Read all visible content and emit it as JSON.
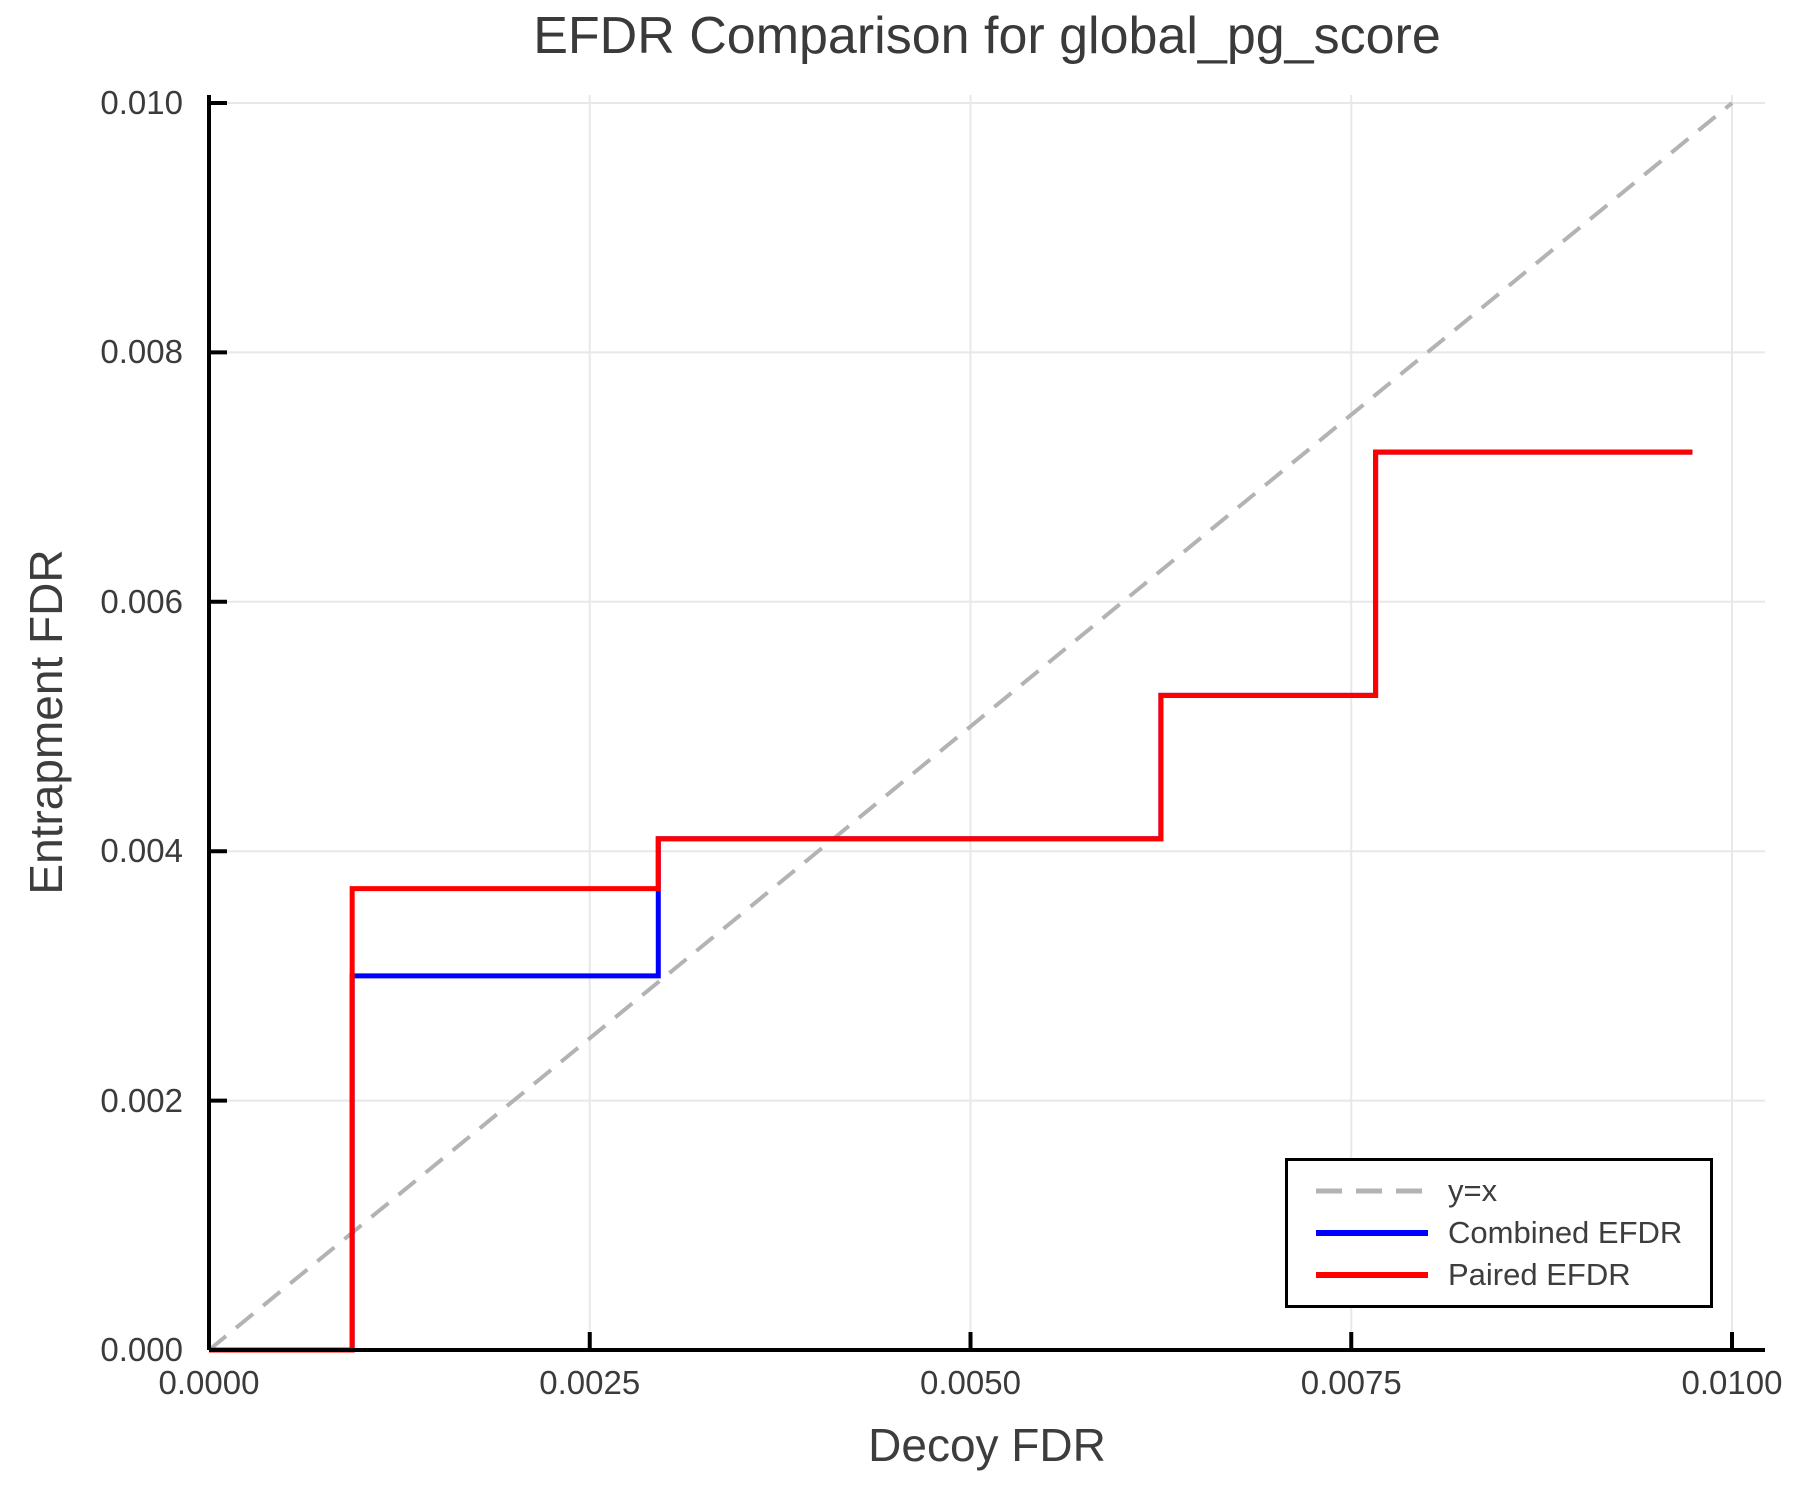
{
  "title": "EFDR Comparison for global_pg_score",
  "chart_data": {
    "type": "line",
    "subtype": "step-comparison",
    "title": "EFDR Comparison for global_pg_score",
    "xlabel": "Decoy FDR",
    "ylabel": "Entrapment FDR",
    "xlim": [
      0.0,
      0.01
    ],
    "ylim": [
      0.0,
      0.01
    ],
    "grid": true,
    "grid_color": "#e8e8e8",
    "axis_color": "#000000",
    "text_color": "#3d3d3d",
    "x_ticks": {
      "values": [
        0.0,
        0.0025,
        0.005,
        0.0075,
        0.01
      ],
      "labels": [
        "0.0000",
        "0.0025",
        "0.0050",
        "0.0075",
        "0.0100"
      ]
    },
    "y_ticks": {
      "values": [
        0.0,
        0.002,
        0.004,
        0.006,
        0.008,
        0.01
      ],
      "labels": [
        "0.000",
        "0.002",
        "0.004",
        "0.006",
        "0.008",
        "0.010"
      ]
    },
    "series": [
      {
        "name": "y=x",
        "role": "reference-line",
        "color": "#b3b3b3",
        "dashed": true,
        "stroke_width": 4,
        "points": [
          [
            0.0,
            0.0
          ],
          [
            0.01,
            0.01
          ]
        ]
      },
      {
        "name": "Combined EFDR",
        "role": "data-step-line",
        "color": "#0000ff",
        "dashed": false,
        "stroke_width": 5,
        "points": [
          [
            0.0,
            0.0
          ],
          [
            0.00094,
            0.0
          ],
          [
            0.00094,
            0.003
          ],
          [
            0.00295,
            0.003
          ],
          [
            0.00295,
            0.0041
          ],
          [
            0.00625,
            0.0041
          ],
          [
            0.00625,
            0.00525
          ],
          [
            0.00766,
            0.00525
          ],
          [
            0.00766,
            0.0072
          ],
          [
            0.00974,
            0.0072
          ]
        ]
      },
      {
        "name": "Paired EFDR",
        "role": "data-step-line",
        "color": "#ff0000",
        "dashed": false,
        "stroke_width": 5,
        "points": [
          [
            0.0,
            0.0
          ],
          [
            0.00094,
            0.0
          ],
          [
            0.00094,
            0.0037
          ],
          [
            0.00295,
            0.0037
          ],
          [
            0.00295,
            0.0041
          ],
          [
            0.00625,
            0.0041
          ],
          [
            0.00625,
            0.00525
          ],
          [
            0.00766,
            0.00525
          ],
          [
            0.00766,
            0.0072
          ],
          [
            0.00974,
            0.0072
          ]
        ]
      }
    ],
    "legend": {
      "position": "lower right",
      "border_color": "#000000",
      "background": "#ffffff",
      "entries": [
        "y=x",
        "Combined EFDR",
        "Paired EFDR"
      ]
    }
  }
}
